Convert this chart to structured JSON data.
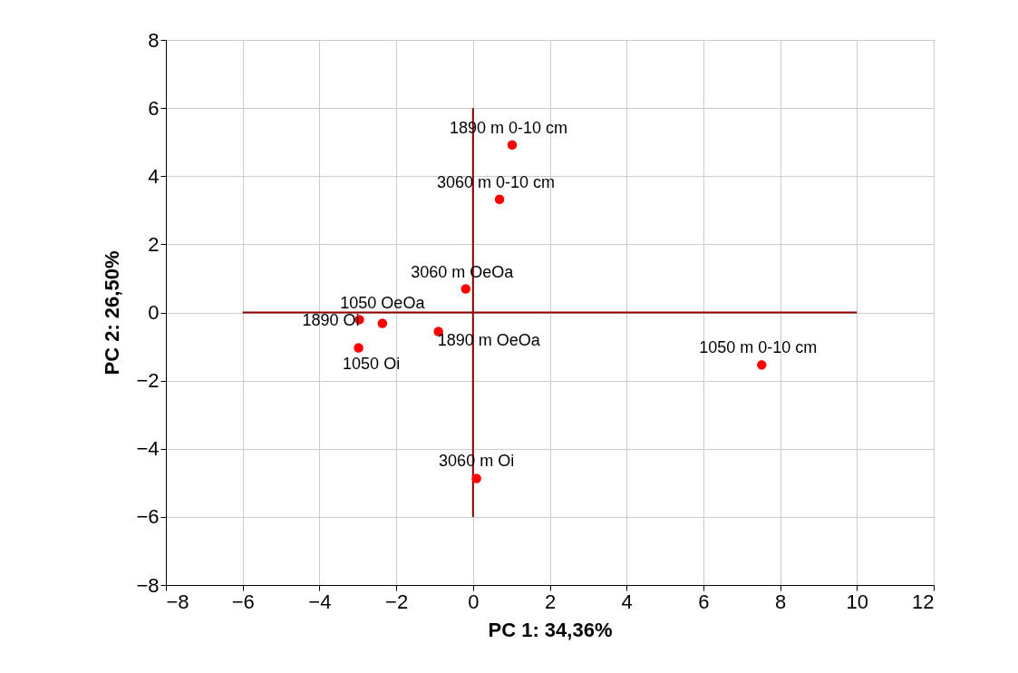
{
  "chart_data": {
    "type": "scatter",
    "xlabel": "PC 1: 34,36%",
    "ylabel": "PC 2: 26,50%",
    "xlim": [
      -8,
      12
    ],
    "xticks": [
      -8,
      -6,
      -4,
      -2,
      0,
      2,
      4,
      6,
      8,
      10,
      12
    ],
    "ylim": [
      -8,
      8
    ],
    "yticks": [
      -8,
      -6,
      -4,
      -2,
      0,
      2,
      4,
      6,
      8
    ],
    "grid": true,
    "marker": "circle",
    "series": [
      {
        "color": "#ff0000",
        "x": [
          1.02,
          0.69,
          -0.19,
          -2.36,
          -2.96,
          -2.98,
          -0.9,
          7.52,
          0.09
        ],
        "values": [
          4.92,
          3.32,
          0.69,
          -0.32,
          -0.21,
          -1.04,
          -0.56,
          -1.54,
          -4.87
        ]
      },
      {
        "type": "line",
        "marker": "none",
        "color": "#8b0000",
        "x": [
          -6,
          10
        ],
        "values": [
          0,
          0
        ]
      },
      {
        "type": "line",
        "marker": "none",
        "color": "#8b0000",
        "x": [
          0,
          0
        ],
        "values": [
          -6,
          6
        ]
      }
    ],
    "annotations": [
      {
        "text": "1890 m 0-10 cm",
        "x": 1.02,
        "y": 4.92
      },
      {
        "text": "3060 m 0-10 cm",
        "x": 0.69,
        "y": 3.32
      },
      {
        "text": "3060 m OeOa",
        "x": -0.19,
        "y": 0.69
      },
      {
        "text": "1050 OeOa",
        "x": -2.36,
        "y": -0.32
      },
      {
        "text": "1890 Oi",
        "x": -2.96,
        "y": -0.21
      },
      {
        "text": "1050 Oi",
        "x": -2.98,
        "y": -1.04
      },
      {
        "text": "1890 m OeOa",
        "x": -0.9,
        "y": -0.56
      },
      {
        "text": "1050 m 0-10 cm",
        "x": 7.52,
        "y": -1.54
      },
      {
        "text": "3060 m Oi",
        "x": 0.09,
        "y": -4.87
      }
    ]
  }
}
